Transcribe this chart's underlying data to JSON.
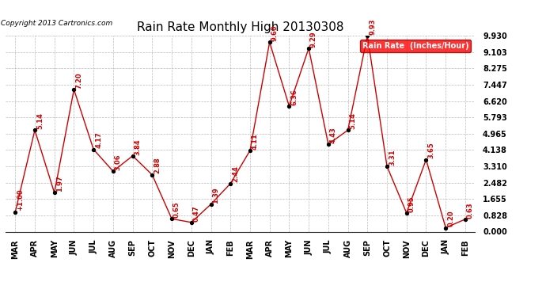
{
  "title": "Rain Rate Monthly High 20130308",
  "copyright": "Copyright 2013 Cartronics.com",
  "legend_label": "Rain Rate  (Inches/Hour)",
  "categories": [
    "MAR",
    "APR",
    "MAY",
    "JUN",
    "JUL",
    "AUG",
    "SEP",
    "OCT",
    "NOV",
    "DEC",
    "JAN",
    "FEB",
    "MAR",
    "APR",
    "MAY",
    "JUN",
    "JUL",
    "AUG",
    "SEP",
    "OCT",
    "NOV",
    "DEC",
    "JAN",
    "FEB"
  ],
  "values": [
    1.0,
    5.14,
    1.97,
    7.2,
    4.17,
    3.06,
    3.84,
    2.88,
    0.65,
    0.47,
    1.39,
    2.44,
    4.11,
    9.6,
    6.36,
    9.29,
    4.43,
    5.14,
    9.93,
    3.31,
    0.95,
    3.65,
    0.2,
    0.63
  ],
  "yticks": [
    0.0,
    0.828,
    1.655,
    2.482,
    3.31,
    4.138,
    4.965,
    5.793,
    6.62,
    7.447,
    8.275,
    9.103,
    9.93
  ],
  "ymax": 9.93,
  "ymin": 0.0,
  "line_color": "#cc0000",
  "marker_color": "#000000",
  "bg_color": "#ffffff",
  "grid_color": "#bbbbbb",
  "label_color": "#cc0000",
  "title_fontsize": 11,
  "label_fontsize": 6.0,
  "tick_fontsize": 7.0,
  "copyright_fontsize": 6.5,
  "legend_fontsize": 7.0
}
